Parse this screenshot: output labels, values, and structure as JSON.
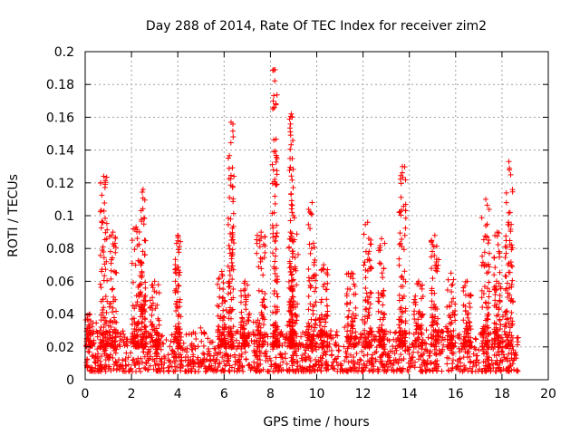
{
  "chart_data": {
    "type": "scatter",
    "title": "Day 288 of 2014, Rate Of TEC Index for receiver zim2",
    "xlabel": "GPS time / hours",
    "ylabel": "ROTI / TECUs",
    "xlim": [
      0,
      20
    ],
    "ylim": [
      0,
      0.2
    ],
    "x_ticks": [
      0,
      2,
      4,
      6,
      8,
      10,
      12,
      14,
      16,
      18,
      20
    ],
    "x_tick_labels": [
      "0",
      "2",
      "4",
      "6",
      "8",
      "10",
      "12",
      "14",
      "16",
      "18",
      "20"
    ],
    "y_ticks": [
      0,
      0.02,
      0.04,
      0.06,
      0.08,
      0.1,
      0.12,
      0.14,
      0.16,
      0.18,
      0.2
    ],
    "y_tick_labels": [
      "0",
      "0.02",
      "0.04",
      "0.06",
      "0.08",
      "0.1",
      "0.12",
      "0.14",
      "0.16",
      "0.18",
      "0.2"
    ],
    "grid": true,
    "marker": "+",
    "marker_color": "#ff0000",
    "data_x_range": [
      0,
      18.7
    ],
    "baseline_range": [
      0.005,
      0.03
    ],
    "bursts": [
      {
        "x": 0.2,
        "width": 0.35,
        "peak": 0.04
      },
      {
        "x": 0.8,
        "width": 0.3,
        "peak": 0.124
      },
      {
        "x": 1.2,
        "width": 0.3,
        "peak": 0.09
      },
      {
        "x": 2.2,
        "width": 0.35,
        "peak": 0.093
      },
      {
        "x": 2.5,
        "width": 0.25,
        "peak": 0.116
      },
      {
        "x": 3.0,
        "width": 0.4,
        "peak": 0.06
      },
      {
        "x": 4.0,
        "width": 0.25,
        "peak": 0.088
      },
      {
        "x": 5.9,
        "width": 0.4,
        "peak": 0.066
      },
      {
        "x": 6.3,
        "width": 0.25,
        "peak": 0.157
      },
      {
        "x": 6.9,
        "width": 0.4,
        "peak": 0.06
      },
      {
        "x": 7.6,
        "width": 0.4,
        "peak": 0.09
      },
      {
        "x": 8.2,
        "width": 0.25,
        "peak": 0.189
      },
      {
        "x": 8.9,
        "width": 0.2,
        "peak": 0.162
      },
      {
        "x": 9.0,
        "width": 0.4,
        "peak": 0.1
      },
      {
        "x": 9.8,
        "width": 0.35,
        "peak": 0.108
      },
      {
        "x": 10.3,
        "width": 0.4,
        "peak": 0.07
      },
      {
        "x": 11.5,
        "width": 0.4,
        "peak": 0.065
      },
      {
        "x": 12.2,
        "width": 0.35,
        "peak": 0.096
      },
      {
        "x": 12.8,
        "width": 0.3,
        "peak": 0.086
      },
      {
        "x": 13.7,
        "width": 0.3,
        "peak": 0.13
      },
      {
        "x": 14.4,
        "width": 0.4,
        "peak": 0.06
      },
      {
        "x": 15.1,
        "width": 0.35,
        "peak": 0.088
      },
      {
        "x": 15.8,
        "width": 0.4,
        "peak": 0.065
      },
      {
        "x": 16.5,
        "width": 0.35,
        "peak": 0.06
      },
      {
        "x": 17.3,
        "width": 0.35,
        "peak": 0.11
      },
      {
        "x": 17.8,
        "width": 0.3,
        "peak": 0.09
      },
      {
        "x": 18.3,
        "width": 0.35,
        "peak": 0.133
      }
    ]
  }
}
